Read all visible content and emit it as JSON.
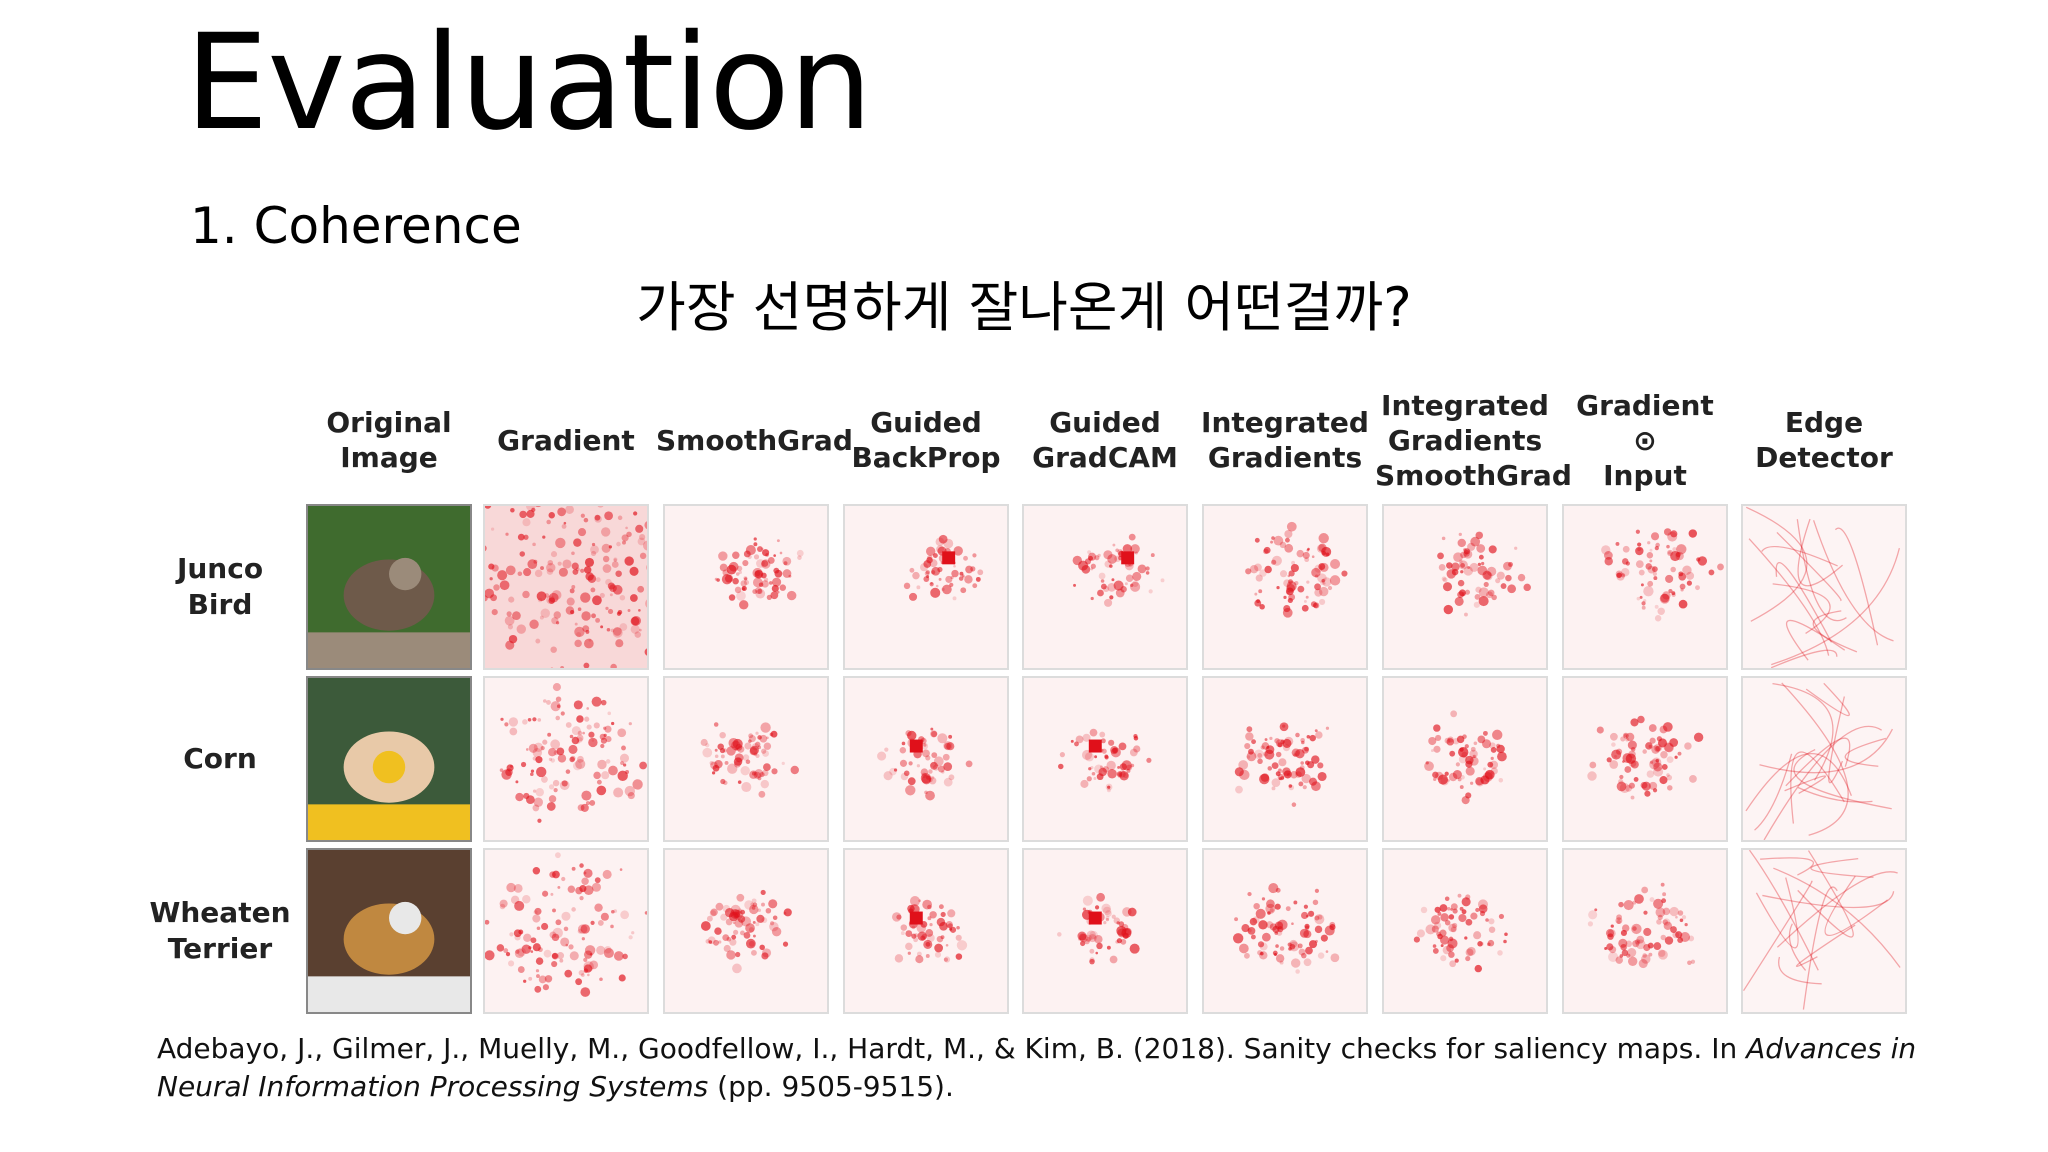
{
  "slide": {
    "title": "Evaluation",
    "subtitle": "1. Coherence",
    "question": "가장 선명하게 잘나온게 어떤걸까?"
  },
  "figure": {
    "columns": [
      {
        "label": "Original\nImage",
        "icon": "original-image"
      },
      {
        "label": "Gradient",
        "icon": "saliency-map"
      },
      {
        "label": "SmoothGrad",
        "icon": "saliency-map"
      },
      {
        "label": "Guided\nBackProp",
        "icon": "saliency-map"
      },
      {
        "label": "Guided\nGradCAM",
        "icon": "saliency-map"
      },
      {
        "label": "Integrated\nGradients",
        "icon": "saliency-map"
      },
      {
        "label": "Integrated\nGradients\nSmoothGrad",
        "icon": "saliency-map"
      },
      {
        "label": "Gradient\n⊙\nInput",
        "icon": "saliency-map"
      },
      {
        "label": "Edge\nDetector",
        "icon": "edge-map"
      }
    ],
    "rows": [
      {
        "label": "Junco\nBird",
        "photo_colors": [
          "#3f6b2e",
          "#6e5a4a",
          "#9b8b7a"
        ]
      },
      {
        "label": "Corn",
        "photo_colors": [
          "#3c5a3a",
          "#e8c9a8",
          "#f0c020"
        ]
      },
      {
        "label": "Wheaten\nTerrier",
        "photo_colors": [
          "#5a4030",
          "#c08840",
          "#e8e8e8"
        ]
      }
    ],
    "heat_color": "#e0101a"
  },
  "citation": {
    "prefix": "Adebayo, J., Gilmer, J., Muelly, M., Goodfellow, I., Hardt, M., & Kim, B. (2018). Sanity checks for saliency maps. In ",
    "venue": "Advances in Neural Information Processing Systems",
    "suffix": " (pp. 9505-9515)."
  }
}
